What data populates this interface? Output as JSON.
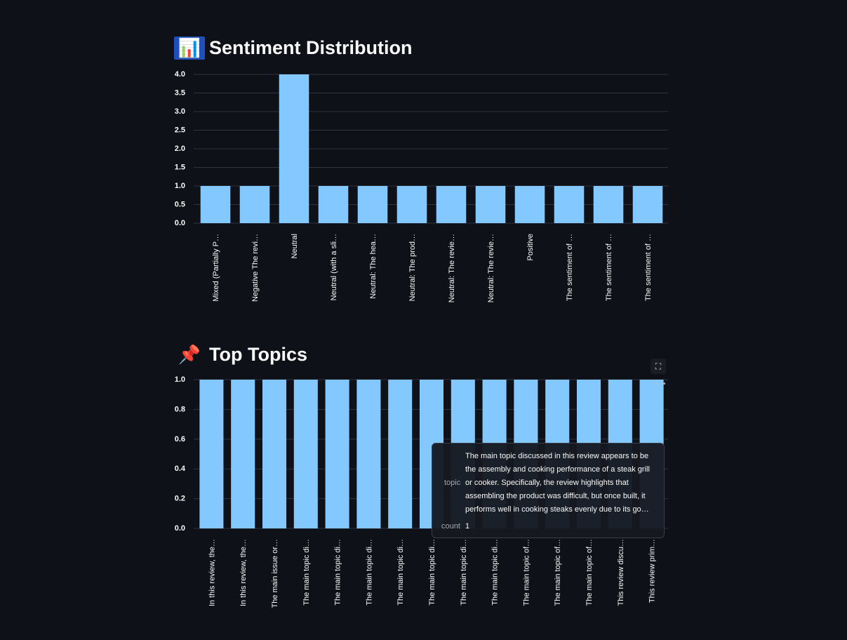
{
  "sections": {
    "sentiment": {
      "title": "Sentiment Distribution",
      "emoji": "📊"
    },
    "topics": {
      "title": "Top Topics",
      "emoji": "📌"
    }
  },
  "chart_data": [
    {
      "type": "bar",
      "title": "Sentiment Distribution",
      "categories": [
        "Mixed (Partially P…",
        "Negative  The revi…",
        "Neutral",
        "Neutral (with a sli…",
        "Neutral: The hea…",
        "Neutral: The prod…",
        "Neutral: The revie…",
        "Neutral: The revie…",
        "Positive",
        "The sentiment of …",
        "The sentiment of …",
        "The sentiment of …"
      ],
      "values": [
        1,
        1,
        4,
        1,
        1,
        1,
        1,
        1,
        1,
        1,
        1,
        1
      ],
      "ylim": [
        0,
        4
      ],
      "yticks": [
        "0.0",
        "0.5",
        "1.0",
        "1.5",
        "2.0",
        "2.5",
        "3.0",
        "3.5",
        "4.0"
      ],
      "grid": true,
      "color": "#83c9ff"
    },
    {
      "type": "bar",
      "title": "Top Topics",
      "categories": [
        "In this review, the…",
        "In this review, the…",
        "The main issue or…",
        "The main topic di…",
        "The main topic di…",
        "The main topic di…",
        "The main topic di…",
        "The main topic di…",
        "The main topic di…",
        "The main topic di…",
        "The main topic of…",
        "The main topic of…",
        "The main topic of…",
        "This review discu…",
        "This review prim…"
      ],
      "values": [
        1,
        1,
        1,
        1,
        1,
        1,
        1,
        1,
        1,
        1,
        1,
        1,
        1,
        1,
        1
      ],
      "ylim": [
        0,
        1
      ],
      "yticks": [
        "0.0",
        "0.2",
        "0.4",
        "0.6",
        "0.8",
        "1.0"
      ],
      "grid": true,
      "color": "#83c9ff"
    }
  ],
  "tooltip": {
    "topic_key": "topic",
    "topic_value": "The main topic discussed in this review appears to be the assembly and cooking performance of a steak grill or cooker. Specifically, the review highlights that assembling the product was difficult, but once built, it performs well in cooking steaks evenly due to its go…",
    "count_key": "count",
    "count_value": "1"
  },
  "controls": {
    "fullscreen_icon": "expand-icon",
    "menu_icon": "more-horizontal-icon"
  }
}
